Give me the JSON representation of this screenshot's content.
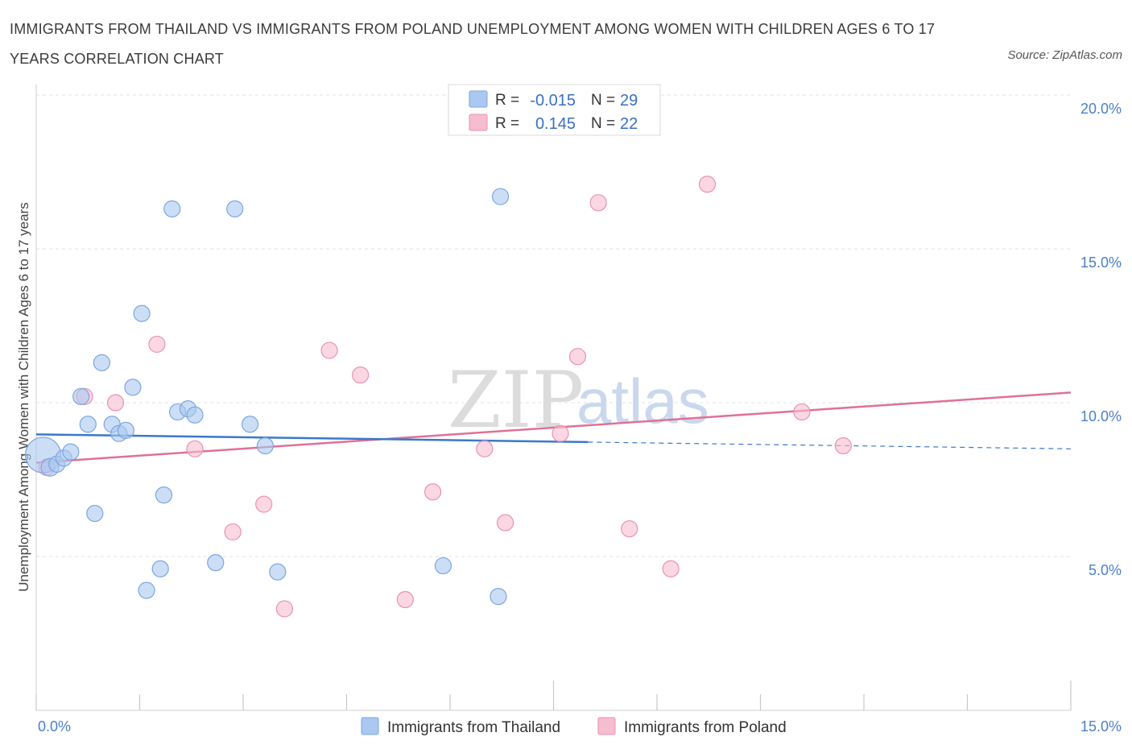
{
  "title": "IMMIGRANTS FROM THAILAND VS IMMIGRANTS FROM POLAND UNEMPLOYMENT AMONG WOMEN WITH CHILDREN AGES 6 TO 17 YEARS CORRELATION CHART",
  "source": "Source: ZipAtlas.com",
  "watermark": {
    "zip": "ZIP",
    "atlas": "atlas"
  },
  "colors": {
    "thailand_fill": "#aac8f0",
    "thailand_stroke": "#7aa6e0",
    "thailand_line": "#3a78cc",
    "poland_fill": "#f6bcd0",
    "poland_stroke": "#e991b0",
    "poland_line": "#e07098",
    "grid": "#dde3ea",
    "axis_label": "#4a7fc8"
  },
  "legend": {
    "r_label": "R =",
    "n_label": "N =",
    "thailand": {
      "r": "-0.015",
      "n": "29"
    },
    "poland": {
      "r": "0.145",
      "n": "22"
    }
  },
  "chart_data": {
    "type": "scatter",
    "title": "IMMIGRANTS FROM THAILAND VS IMMIGRANTS FROM POLAND UNEMPLOYMENT AMONG WOMEN WITH CHILDREN AGES 6 TO 17 YEARS CORRELATION CHART",
    "xlabel": "",
    "ylabel": "Unemployment Among Women with Children Ages 6 to 17 years",
    "xlim": [
      0,
      15
    ],
    "ylim": [
      0,
      20
    ],
    "x_tick_labels": [
      "0.0%",
      "15.0%"
    ],
    "y_ticks": [
      5,
      10,
      15,
      20
    ],
    "y_tick_labels": [
      "5.0%",
      "10.0%",
      "15.0%",
      "20.0%"
    ],
    "grid": true,
    "legend_position": "top-center",
    "series": [
      {
        "name": "Immigrants from Thailand",
        "r": -0.015,
        "n": 29,
        "points": [
          [
            0.1,
            8.3,
            22
          ],
          [
            0.2,
            7.9,
            11
          ],
          [
            0.3,
            8.0,
            10
          ],
          [
            0.4,
            8.2,
            10
          ],
          [
            0.5,
            8.4,
            10
          ],
          [
            0.65,
            10.2,
            10
          ],
          [
            0.75,
            9.3,
            10
          ],
          [
            0.85,
            6.4,
            10
          ],
          [
            0.95,
            11.3,
            10
          ],
          [
            1.1,
            9.3,
            10
          ],
          [
            1.2,
            9.0,
            10
          ],
          [
            1.3,
            9.1,
            10
          ],
          [
            1.4,
            10.5,
            10
          ],
          [
            1.53,
            12.9,
            10
          ],
          [
            1.6,
            3.9,
            10
          ],
          [
            1.8,
            4.6,
            10
          ],
          [
            1.85,
            7.0,
            10
          ],
          [
            1.97,
            16.3,
            10
          ],
          [
            2.05,
            9.7,
            10
          ],
          [
            2.2,
            9.8,
            10
          ],
          [
            2.3,
            9.6,
            10
          ],
          [
            2.6,
            4.8,
            10
          ],
          [
            2.88,
            16.3,
            10
          ],
          [
            3.1,
            9.3,
            10
          ],
          [
            3.32,
            8.6,
            10
          ],
          [
            3.5,
            4.5,
            10
          ],
          [
            5.9,
            4.7,
            10
          ],
          [
            6.7,
            3.7,
            10
          ],
          [
            6.73,
            16.7,
            10
          ]
        ],
        "trend": {
          "x": [
            0,
            8.0
          ],
          "y": [
            8.97,
            8.72
          ]
        },
        "trend_dashed": {
          "x": [
            8.0,
            15.0
          ],
          "y": [
            8.72,
            8.5
          ]
        }
      },
      {
        "name": "Immigrants from Poland",
        "r": 0.145,
        "n": 22,
        "points": [
          [
            0.15,
            7.9,
            10
          ],
          [
            0.7,
            10.2,
            10
          ],
          [
            1.15,
            10.0,
            10
          ],
          [
            1.75,
            11.9,
            10
          ],
          [
            2.3,
            8.5,
            10
          ],
          [
            2.85,
            5.8,
            10
          ],
          [
            3.3,
            6.7,
            10
          ],
          [
            3.6,
            3.3,
            10
          ],
          [
            4.25,
            11.7,
            10
          ],
          [
            4.7,
            10.9,
            10
          ],
          [
            5.35,
            3.6,
            10
          ],
          [
            5.75,
            7.1,
            10
          ],
          [
            6.5,
            8.5,
            10
          ],
          [
            6.8,
            6.1,
            10
          ],
          [
            7.6,
            9.0,
            10
          ],
          [
            7.85,
            11.5,
            10
          ],
          [
            8.15,
            16.5,
            10
          ],
          [
            8.6,
            5.9,
            10
          ],
          [
            9.2,
            4.6,
            10
          ],
          [
            9.73,
            17.1,
            10
          ],
          [
            11.1,
            9.7,
            10
          ],
          [
            11.7,
            8.6,
            10
          ]
        ],
        "trend": {
          "x": [
            0,
            15.0
          ],
          "y": [
            8.05,
            10.33
          ]
        }
      }
    ]
  }
}
